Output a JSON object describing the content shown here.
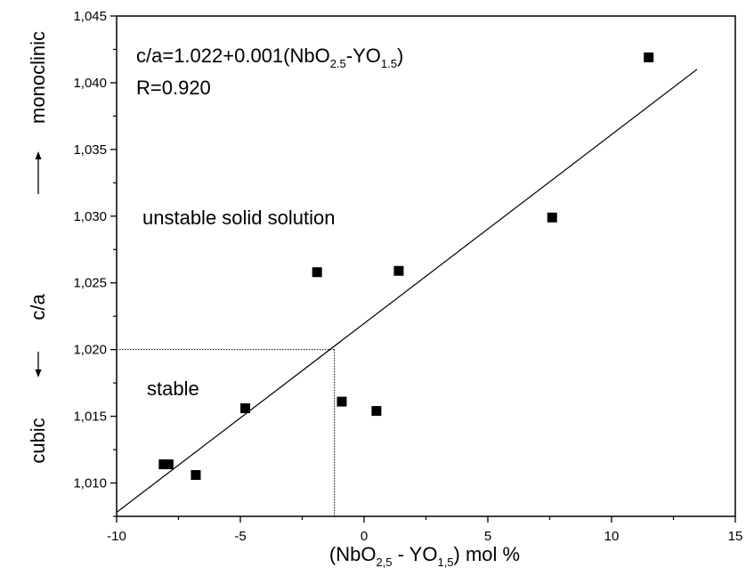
{
  "chart_data": {
    "type": "scatter",
    "xlabel": {
      "pre": "(NbO",
      "sub1": "2,5",
      "mid": " - YO",
      "sub2": "1,5",
      "post": ") mol %"
    },
    "ylabel": "c/a",
    "y_top_label": "monoclinic",
    "y_bottom_label": "cubic",
    "xlim": [
      -10,
      15
    ],
    "ylim": [
      1.0075,
      1.045
    ],
    "x_ticks": [
      -10,
      -5,
      0,
      5,
      10,
      15
    ],
    "x_tick_labels": [
      "-10",
      "-5",
      "0",
      "5",
      "10",
      "15"
    ],
    "y_ticks": [
      1.01,
      1.015,
      1.02,
      1.025,
      1.03,
      1.035,
      1.04,
      1.045
    ],
    "y_tick_labels": [
      "1,010",
      "1,015",
      "1,020",
      "1,025",
      "1,030",
      "1,035",
      "1,040",
      "1,045"
    ],
    "grid": false,
    "series": [
      {
        "marker": "square",
        "color": "#000000",
        "points": [
          {
            "x": -8.1,
            "y": 1.0114
          },
          {
            "x": -7.9,
            "y": 1.0114
          },
          {
            "x": -6.8,
            "y": 1.0106
          },
          {
            "x": -4.8,
            "y": 1.0156
          },
          {
            "x": -0.9,
            "y": 1.0161
          },
          {
            "x": 0.5,
            "y": 1.0154
          },
          {
            "x": -1.9,
            "y": 1.0258
          },
          {
            "x": 1.4,
            "y": 1.0259
          },
          {
            "x": 7.6,
            "y": 1.0299
          },
          {
            "x": 11.5,
            "y": 1.0419
          }
        ]
      }
    ],
    "fit_line": {
      "x": [
        -10,
        13.45
      ],
      "y": [
        1.0078,
        1.041
      ]
    },
    "reference_point": {
      "x": -1.2,
      "y": 1.02
    },
    "annotations": {
      "equation": {
        "pre": "c/a=1.022+0.001(NbO",
        "sub1": "2.5",
        "mid": "-YO",
        "sub2": "1.5",
        "post": ")"
      },
      "r_value": "R=0.920",
      "unstable": "unstable solid solution",
      "stable": "stable"
    }
  }
}
